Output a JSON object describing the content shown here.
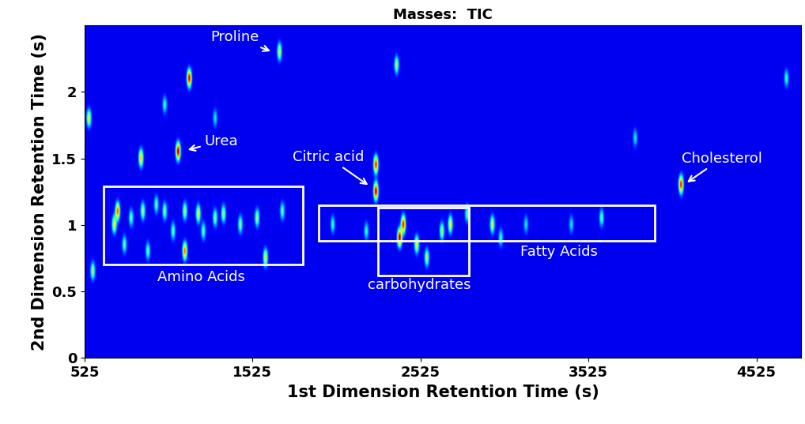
{
  "chart_data": {
    "type": "heatmap",
    "title": "Masses:  TIC",
    "x_label": "1st Dimension Retention Time (s)",
    "y_label": "2nd Dimension Retention Time (s)",
    "xlim": [
      525,
      4790
    ],
    "ylim": [
      0,
      2.5
    ],
    "xticks": [
      525,
      1525,
      2525,
      3525,
      4525
    ],
    "yticks": [
      0,
      0.5,
      1,
      1.5,
      2
    ],
    "color_range": [
      0,
      1
    ],
    "peaks": {
      "x": [
        700,
        720,
        760,
        800,
        870,
        900,
        950,
        1000,
        1050,
        1120,
        1120,
        1200,
        1230,
        1300,
        1350,
        1450,
        1550,
        1600,
        1700,
        549,
        572,
        859,
        1080,
        1146,
        1683,
        1000,
        1300,
        2257,
        2257,
        2398,
        2420,
        2380,
        2500,
        2560,
        2650,
        2700,
        2800,
        2950,
        3000,
        3150,
        3420,
        3600,
        3800,
        4073,
        4700,
        2000,
        2200
      ],
      "y": [
        1.0,
        1.1,
        0.85,
        1.05,
        1.1,
        0.8,
        1.15,
        1.1,
        0.95,
        0.8,
        1.1,
        1.08,
        0.95,
        1.05,
        1.08,
        1.0,
        1.05,
        0.75,
        1.1,
        1.8,
        0.65,
        1.5,
        1.55,
        2.1,
        2.3,
        1.9,
        1.8,
        1.25,
        1.45,
        0.9,
        1.0,
        2.2,
        0.85,
        0.75,
        0.95,
        1.0,
        1.08,
        1.0,
        0.9,
        1.0,
        1.0,
        1.05,
        1.65,
        1.3,
        2.1,
        1.0,
        0.95
      ],
      "intensity": [
        0.6,
        0.8,
        0.4,
        0.4,
        0.5,
        0.4,
        0.4,
        0.45,
        0.4,
        0.8,
        0.5,
        0.6,
        0.4,
        0.45,
        0.5,
        0.45,
        0.5,
        0.6,
        0.4,
        0.6,
        0.5,
        0.7,
        1.0,
        0.95,
        0.55,
        0.35,
        0.3,
        1.0,
        0.9,
        1.0,
        0.9,
        0.5,
        0.6,
        0.5,
        0.5,
        0.6,
        0.4,
        0.55,
        0.35,
        0.3,
        0.3,
        0.4,
        0.3,
        0.9,
        0.35,
        0.35,
        0.35
      ]
    },
    "annotations": [
      {
        "text": "Proline",
        "x": 1419,
        "y": 2.41,
        "target": [
          1645,
          2.3
        ]
      },
      {
        "text": "Urea",
        "x": 1339,
        "y": 1.63,
        "target": [
          1127,
          1.56
        ]
      },
      {
        "text": "Citric acid",
        "x": 1974,
        "y": 1.51,
        "target": [
          2224,
          1.29
        ]
      },
      {
        "text": "Cholesterol",
        "x": 4318,
        "y": 1.5,
        "target": [
          4101,
          1.31
        ]
      }
    ],
    "regions": [
      {
        "label": "Amino Acids",
        "x_range": [
          638,
          1824
        ],
        "y_range": [
          0.7,
          1.29
        ],
        "label_x": 1221,
        "label_y": 0.61
      },
      {
        "label": "Fatty Acids",
        "x_range": [
          1918,
          3918
        ],
        "y_range": [
          0.88,
          1.15
        ],
        "label_x": 3348,
        "label_y": 0.8
      },
      {
        "label": "carbohydrates",
        "x_range": [
          2271,
          2812
        ],
        "y_range": [
          0.62,
          1.13
        ],
        "label_x": 2520,
        "label_y": 0.55
      }
    ]
  }
}
